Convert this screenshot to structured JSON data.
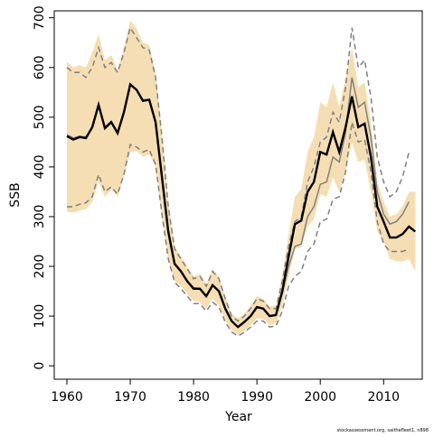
{
  "chart_data": {
    "type": "line",
    "xlabel": "Year",
    "ylabel": "SSB",
    "footnote": "stockassessment.org, saithefleet1, n898",
    "x": [
      1960,
      1961,
      1962,
      1963,
      1964,
      1965,
      1966,
      1967,
      1968,
      1969,
      1970,
      1971,
      1972,
      1973,
      1974,
      1975,
      1976,
      1977,
      1978,
      1979,
      1980,
      1981,
      1982,
      1983,
      1984,
      1985,
      1986,
      1987,
      1988,
      1989,
      1990,
      1991,
      1992,
      1993,
      1994,
      1995,
      1996,
      1997,
      1998,
      1999,
      2000,
      2001,
      2002,
      2003,
      2004,
      2005,
      2006,
      2007,
      2008,
      2009,
      2010,
      2011,
      2012,
      2013,
      2014,
      2015
    ],
    "xlim": [
      1958,
      2016.1
    ],
    "xticks": [
      1960,
      1970,
      1980,
      1990,
      2000,
      2010
    ],
    "ylim": [
      -27,
      714
    ],
    "yticks": [
      0,
      100,
      200,
      300,
      400,
      500,
      600,
      700
    ],
    "band": {
      "color": "#f5deb3",
      "upper": [
        612,
        600,
        605,
        600,
        630,
        668,
        615,
        625,
        595,
        640,
        695,
        678,
        650,
        645,
        590,
        470,
        330,
        240,
        220,
        200,
        180,
        185,
        165,
        195,
        180,
        140,
        105,
        95,
        105,
        120,
        140,
        135,
        120,
        120,
        180,
        265,
        340,
        355,
        430,
        460,
        530,
        520,
        570,
        520,
        580,
        640,
        560,
        570,
        490,
        370,
        330,
        300,
        305,
        320,
        350,
        350
      ],
      "lower": [
        310,
        308,
        312,
        315,
        330,
        370,
        340,
        355,
        340,
        380,
        430,
        432,
        420,
        425,
        400,
        300,
        215,
        170,
        160,
        145,
        130,
        128,
        115,
        135,
        122,
        92,
        72,
        62,
        70,
        82,
        95,
        95,
        82,
        85,
        120,
        180,
        235,
        238,
        280,
        295,
        345,
        340,
        380,
        350,
        390,
        450,
        410,
        415,
        350,
        270,
        250,
        215,
        210,
        210,
        215,
        190
      ]
    },
    "series": [
      {
        "color": "#808080",
        "dash": true,
        "values": [
          600,
          590,
          590,
          580,
          600,
          640,
          600,
          610,
          590,
          630,
          680,
          660,
          640,
          635,
          580,
          460,
          320,
          235,
          215,
          195,
          175,
          180,
          160,
          190,
          175,
          135,
          100,
          90,
          100,
          115,
          135,
          130,
          115,
          115,
          170,
          240,
          290,
          300,
          370,
          400,
          450,
          460,
          510,
          490,
          560,
          680,
          600,
          615,
          540,
          420,
          370,
          340,
          350,
          380,
          430,
          null
        ]
      },
      {
        "color": "#808080",
        "dash": true,
        "values": [
          320,
          320,
          325,
          328,
          340,
          385,
          350,
          360,
          345,
          385,
          445,
          440,
          430,
          435,
          405,
          305,
          215,
          168,
          155,
          140,
          125,
          125,
          110,
          128,
          118,
          88,
          68,
          60,
          67,
          78,
          90,
          90,
          78,
          80,
          110,
          160,
          180,
          190,
          230,
          245,
          290,
          295,
          335,
          340,
          390,
          490,
          450,
          455,
          390,
          290,
          245,
          230,
          230,
          230,
          235,
          null
        ]
      },
      {
        "color": "#808080",
        "dash": false,
        "values": [
          465,
          458,
          462,
          460,
          478,
          522,
          480,
          492,
          470,
          512,
          565,
          556,
          535,
          536,
          492,
          382,
          272,
          207,
          191,
          171,
          157,
          156,
          141,
          163,
          151,
          116,
          91,
          79,
          89,
          101,
          119,
          116,
          101,
          103,
          145,
          200,
          240,
          245,
          300,
          320,
          365,
          370,
          420,
          410,
          470,
          580,
          520,
          530,
          460,
          350,
          305,
          285,
          290,
          305,
          330,
          null
        ]
      },
      {
        "color": "#000000",
        "dash": false,
        "values": [
          462,
          455,
          460,
          458,
          480,
          525,
          478,
          490,
          468,
          510,
          566,
          555,
          533,
          535,
          490,
          380,
          270,
          205,
          190,
          170,
          155,
          155,
          140,
          162,
          150,
          115,
          90,
          78,
          88,
          100,
          118,
          115,
          100,
          102,
          150,
          220,
          285,
          292,
          350,
          370,
          430,
          425,
          470,
          430,
          480,
          542,
          480,
          487,
          420,
          320,
          290,
          258,
          258,
          265,
          280,
          270
        ]
      }
    ]
  }
}
